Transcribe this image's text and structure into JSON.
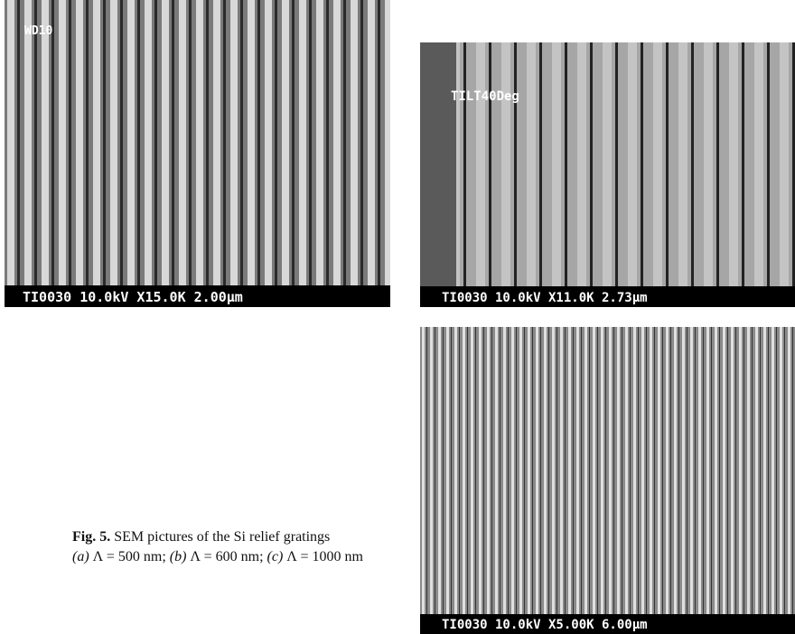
{
  "figure": {
    "panels": [
      {
        "overlay": "WD10",
        "scale_bar": "TI0030 10.0kV X15.0K 2.00μm"
      },
      {
        "overlay": "TILT40Deg",
        "scale_bar": "TI0030 10.0kV X11.0K 2.73μm"
      },
      {
        "scale_bar": "TI0030 10.0kV X5.00K 6.00μm"
      }
    ],
    "caption": {
      "label": "Fig. 5.",
      "text": "SEM pictures of the Si relief gratings",
      "items": [
        {
          "letter": "(a)",
          "text": "Λ = 500 nm;"
        },
        {
          "letter": "(b)",
          "text": "Λ = 600 nm;"
        },
        {
          "letter": "(c)",
          "text": "Λ = 1000 nm"
        }
      ]
    }
  }
}
